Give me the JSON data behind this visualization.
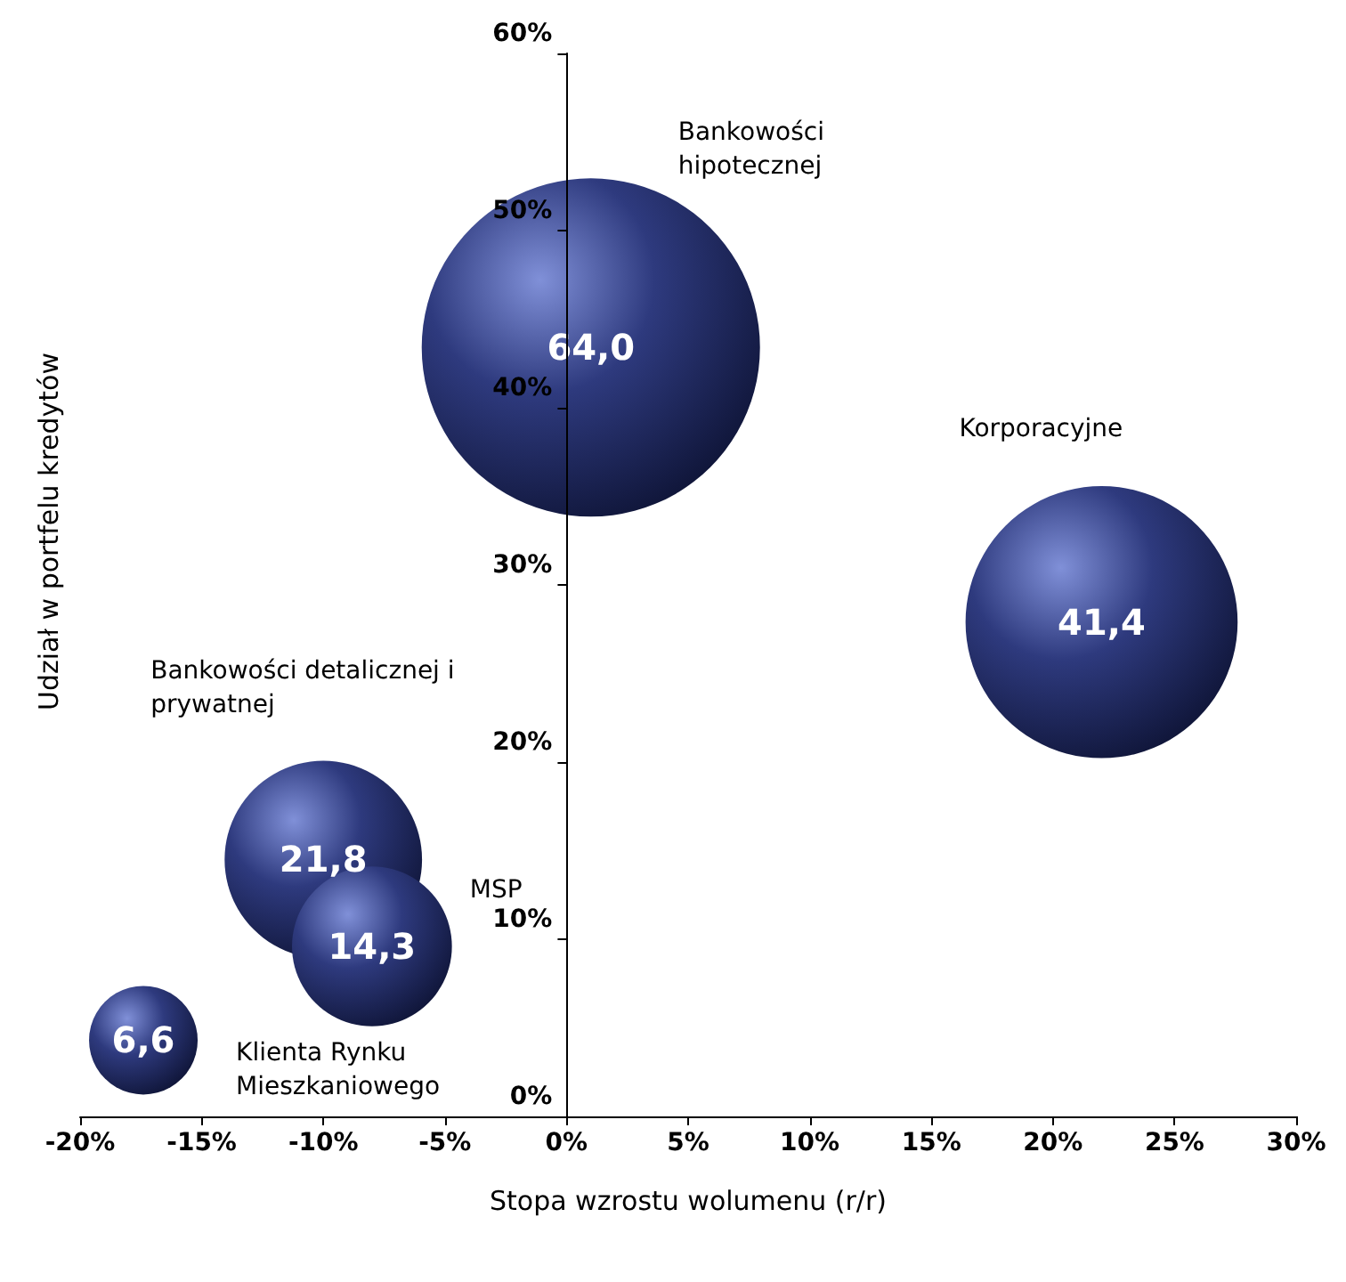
{
  "chart_data": {
    "type": "bubble",
    "xlabel": "Stopa wzrostu wolumenu (r/r)",
    "ylabel": "Udział w portfelu kredytów",
    "x": [
      1.0,
      22.0,
      -10.0,
      -8.0,
      -17.4
    ],
    "values": [
      43.4,
      27.9,
      14.5,
      9.6,
      4.3
    ],
    "sizes": [
      64.0,
      41.4,
      21.8,
      14.3,
      6.6
    ],
    "value_labels": [
      "64,0",
      "41,4",
      "21,8",
      "14,3",
      "6,6"
    ],
    "color": "#2e3a7e",
    "annotations": [
      "Bankowości hipotecznej",
      "Korporacyjne",
      "Bankowości detalicznej i prywatnej",
      "MSP",
      "Klienta Rynku Mieszkaniowego"
    ],
    "xlim": [
      -20,
      30
    ],
    "xticks": [
      {
        "value": -20,
        "label": "-20%"
      },
      {
        "value": -15,
        "label": "-15%"
      },
      {
        "value": -10,
        "label": "-10%"
      },
      {
        "value": -5,
        "label": "-5%"
      },
      {
        "value": 0,
        "label": "0%"
      },
      {
        "value": 5,
        "label": "5%"
      },
      {
        "value": 10,
        "label": "10%"
      },
      {
        "value": 15,
        "label": "15%"
      },
      {
        "value": 20,
        "label": "20%"
      },
      {
        "value": 25,
        "label": "25%"
      },
      {
        "value": 30,
        "label": "30%"
      }
    ],
    "ylim": [
      0,
      60
    ],
    "yticks": [
      {
        "value": 0,
        "label": "0%"
      },
      {
        "value": 10,
        "label": "10%"
      },
      {
        "value": 20,
        "label": "20%"
      },
      {
        "value": 30,
        "label": "30%"
      },
      {
        "value": 40,
        "label": "40%"
      },
      {
        "value": 50,
        "label": "50%"
      },
      {
        "value": 60,
        "label": "60%"
      }
    ],
    "grid": false
  }
}
